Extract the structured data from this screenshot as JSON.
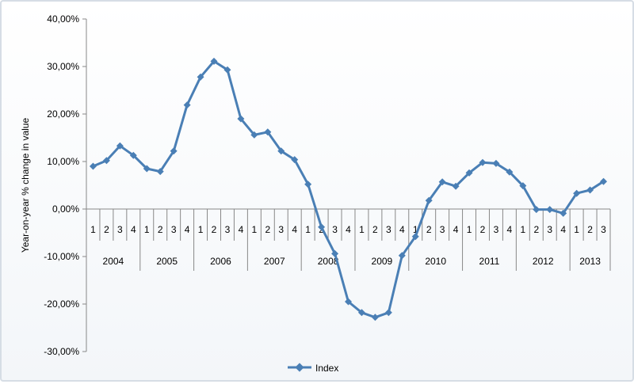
{
  "chart_data": {
    "type": "line",
    "ylabel": "Year-on-year % change in value",
    "xlabel": "",
    "ylim": [
      -30,
      40
    ],
    "ytick_step": 10,
    "ytick_labels": [
      "40,00%",
      "30,00%",
      "20,00%",
      "10,00%",
      "0,00%",
      "-10,00%",
      "-20,00%",
      "-30,00%"
    ],
    "years": [
      "2004",
      "2005",
      "2006",
      "2007",
      "2008",
      "2009",
      "2010",
      "2011",
      "2012",
      "2013"
    ],
    "quarters_per_year": [
      4,
      4,
      4,
      4,
      4,
      4,
      4,
      4,
      4,
      3
    ],
    "quarter_labels": [
      "1",
      "2",
      "3",
      "4"
    ],
    "grid": false,
    "legend_position": "bottom",
    "series": [
      {
        "name": "Index",
        "color": "#4a7fb5",
        "marker": "diamond",
        "values": [
          9.0,
          10.2,
          13.3,
          11.3,
          8.5,
          7.9,
          12.2,
          21.9,
          27.8,
          31.1,
          29.3,
          19.0,
          15.6,
          16.2,
          12.2,
          10.4,
          5.2,
          -3.8,
          -9.4,
          -19.5,
          -21.8,
          -22.8,
          -21.8,
          -9.8,
          -5.8,
          1.8,
          5.7,
          4.8,
          7.6,
          9.8,
          9.6,
          7.8,
          4.9,
          -0.1,
          -0.1,
          -0.9,
          3.3,
          4.0,
          5.8
        ]
      }
    ]
  }
}
